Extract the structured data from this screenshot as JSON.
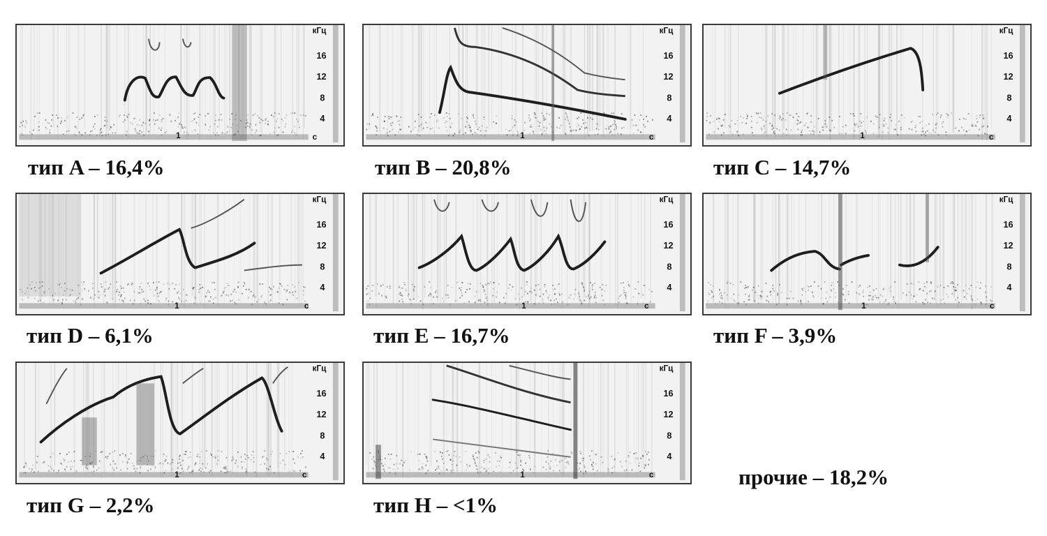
{
  "axis": {
    "unit": "кГц",
    "ticks": [
      "16",
      "12",
      "8",
      "4"
    ],
    "tick_khz": [
      16,
      12,
      8,
      4
    ],
    "time_mark": "1",
    "time_unit": "с"
  },
  "panels": [
    {
      "id": "A",
      "caption": "тип A – 16,4%"
    },
    {
      "id": "B",
      "caption": "тип B – 20,8%"
    },
    {
      "id": "C",
      "caption": "тип C – 14,7%"
    },
    {
      "id": "D",
      "caption": "тип D – 6,1%"
    },
    {
      "id": "E",
      "caption": "тип E – 16,7%"
    },
    {
      "id": "F",
      "caption": "тип F – 3,9%"
    },
    {
      "id": "G",
      "caption": "тип G – 2,2%"
    },
    {
      "id": "H",
      "caption": "тип H – <1%"
    }
  ],
  "other": {
    "caption": "прочие – 18,2%"
  },
  "colors": {
    "trace": "#1e1e1e",
    "background": "#f2f2f2",
    "border": "#3a3a3a"
  }
}
